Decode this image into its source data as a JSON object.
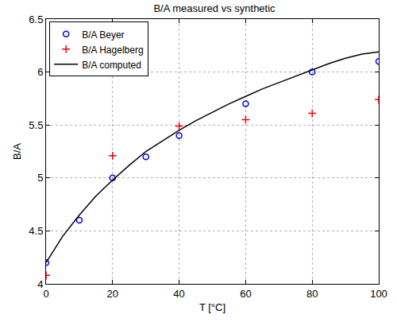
{
  "chart_data": {
    "type": "scatter",
    "title": "B/A measured vs synthetic",
    "x_label": "T [°C]",
    "y_label": "B/A",
    "xlim": [
      0,
      100
    ],
    "xticks": [
      0,
      20,
      40,
      60,
      80,
      100
    ],
    "ylim": [
      4,
      6.5
    ],
    "yticks": [
      4,
      4.5,
      5,
      5.5,
      6,
      6.5
    ],
    "grid": true,
    "legend": "upper left",
    "series": [
      {
        "name": "B/A Beyer",
        "type": "scatter",
        "marker": "circle",
        "color": "#0000ff",
        "x": [
          0,
          10,
          20,
          30,
          40,
          60,
          80,
          100
        ],
        "values": [
          4.2,
          4.6,
          5.0,
          5.2,
          5.4,
          5.7,
          6.0,
          6.1
        ]
      },
      {
        "name": "B/A Hagelberg",
        "type": "scatter",
        "marker": "cross",
        "color": "#ff0000",
        "x": [
          0,
          20,
          40,
          60,
          80,
          100
        ],
        "values": [
          4.08,
          5.21,
          5.49,
          5.55,
          5.61,
          5.74
        ]
      },
      {
        "name": "B/A computed",
        "type": "line",
        "line_style": "solid",
        "color": "#000000",
        "x": [
          0,
          5,
          10,
          15,
          20,
          25,
          30,
          35,
          40,
          45,
          50,
          55,
          60,
          65,
          70,
          75,
          80,
          85,
          90,
          95,
          100
        ],
        "values": [
          4.2,
          4.45,
          4.65,
          4.83,
          4.98,
          5.12,
          5.25,
          5.35,
          5.45,
          5.54,
          5.62,
          5.7,
          5.77,
          5.84,
          5.9,
          5.96,
          6.02,
          6.08,
          6.13,
          6.17,
          6.19
        ]
      }
    ]
  }
}
